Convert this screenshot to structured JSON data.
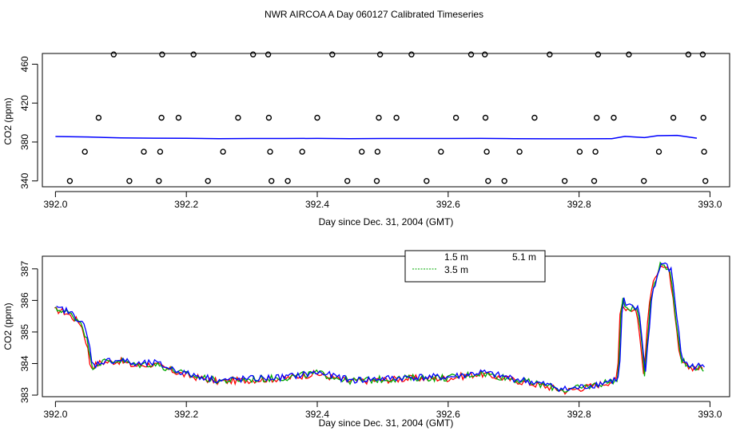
{
  "title": "NWR AIRCOA A  Day 060127  Calibrated Timeseries",
  "chart_data": [
    {
      "type": "scatter",
      "xlabel": "Day since Dec. 31, 2004 (GMT)",
      "ylabel": "CO2 (ppm)",
      "xlim": [
        391.98,
        393.03
      ],
      "ylim": [
        334,
        471
      ],
      "xticks": [
        "392.0",
        "392.2",
        "392.4",
        "392.6",
        "392.8",
        "393.0"
      ],
      "yticks": [
        "340",
        "380",
        "420",
        "460"
      ],
      "calibration_points": [
        [
          392.022,
          340
        ],
        [
          392.045,
          370
        ],
        [
          392.066,
          405
        ],
        [
          392.089,
          470
        ],
        [
          392.113,
          340
        ],
        [
          392.135,
          370
        ],
        [
          392.158,
          340
        ],
        [
          392.16,
          370
        ],
        [
          392.162,
          405
        ],
        [
          392.163,
          470
        ],
        [
          392.188,
          405
        ],
        [
          392.211,
          470
        ],
        [
          392.233,
          340
        ],
        [
          392.256,
          370
        ],
        [
          392.279,
          405
        ],
        [
          392.302,
          470
        ],
        [
          392.325,
          470
        ],
        [
          392.326,
          405
        ],
        [
          392.328,
          370
        ],
        [
          392.33,
          340
        ],
        [
          392.355,
          340
        ],
        [
          392.377,
          370
        ],
        [
          392.4,
          405
        ],
        [
          392.423,
          470
        ],
        [
          392.446,
          340
        ],
        [
          392.468,
          370
        ],
        [
          392.491,
          340
        ],
        [
          392.492,
          370
        ],
        [
          392.494,
          405
        ],
        [
          392.496,
          470
        ],
        [
          392.521,
          405
        ],
        [
          392.544,
          470
        ],
        [
          392.567,
          340
        ],
        [
          392.589,
          370
        ],
        [
          392.612,
          405
        ],
        [
          392.635,
          470
        ],
        [
          392.656,
          470
        ],
        [
          392.657,
          405
        ],
        [
          392.659,
          370
        ],
        [
          392.661,
          340
        ],
        [
          392.686,
          340
        ],
        [
          392.709,
          370
        ],
        [
          392.732,
          405
        ],
        [
          392.755,
          470
        ],
        [
          392.778,
          340
        ],
        [
          392.801,
          370
        ],
        [
          392.823,
          340
        ],
        [
          392.825,
          370
        ],
        [
          392.827,
          405
        ],
        [
          392.829,
          470
        ],
        [
          392.853,
          405
        ],
        [
          392.876,
          470
        ],
        [
          392.899,
          340
        ],
        [
          392.922,
          370
        ],
        [
          392.944,
          405
        ],
        [
          392.967,
          470
        ],
        [
          392.989,
          470
        ],
        [
          392.99,
          405
        ],
        [
          392.991,
          370
        ],
        [
          392.993,
          340
        ]
      ],
      "baseline_line": {
        "x": [
          392.0,
          392.05,
          392.1,
          392.15,
          392.2,
          392.25,
          392.3,
          392.35,
          392.4,
          392.45,
          392.5,
          392.55,
          392.6,
          392.65,
          392.7,
          392.75,
          392.8,
          392.85,
          392.87,
          392.9,
          392.92,
          392.95,
          392.98
        ],
        "y": [
          385.7,
          385.2,
          384.2,
          384.0,
          383.8,
          383.5,
          383.6,
          383.6,
          383.7,
          383.5,
          383.6,
          383.6,
          383.6,
          383.7,
          383.5,
          383.3,
          383.3,
          383.5,
          385.8,
          384.5,
          386.5,
          386.8,
          384.0
        ]
      }
    },
    {
      "type": "line",
      "xlabel": "Day since Dec. 31, 2004 (GMT)",
      "ylabel": "CO2 (ppm)",
      "xlim": [
        391.98,
        393.03
      ],
      "ylim": [
        382.95,
        387.4
      ],
      "xticks": [
        "392.0",
        "392.2",
        "392.4",
        "392.6",
        "392.8",
        "393.0"
      ],
      "yticks": [
        "383",
        "384",
        "385",
        "386",
        "387"
      ],
      "legend": {
        "position": "top-center",
        "partial_entries": [
          "1.5 m",
          "5.1 m"
        ],
        "entries": [
          {
            "label": "3.5 m",
            "color": "#00aa00",
            "dashed": true
          }
        ]
      },
      "series": [
        {
          "name": "1.5 m",
          "color": "#ff0000"
        },
        {
          "name": "3.5 m",
          "color": "#00aa00"
        },
        {
          "name": "5.1 m",
          "color": "#0000ff"
        }
      ],
      "profile": {
        "x": [
          392.0,
          392.01,
          392.02,
          392.03,
          392.04,
          392.05,
          392.055,
          392.07,
          392.1,
          392.12,
          392.15,
          392.2,
          392.25,
          392.3,
          392.35,
          392.4,
          392.45,
          392.5,
          392.55,
          392.6,
          392.65,
          392.7,
          392.75,
          392.78,
          392.82,
          392.86,
          392.865,
          392.87,
          392.89,
          392.9,
          392.91,
          392.925,
          392.94,
          392.955,
          392.965,
          392.98,
          392.99
        ],
        "y": [
          385.7,
          385.7,
          385.6,
          385.45,
          385.3,
          384.6,
          383.9,
          384.05,
          384.1,
          383.95,
          384.0,
          383.65,
          383.45,
          383.5,
          383.55,
          383.7,
          383.45,
          383.5,
          383.55,
          383.55,
          383.7,
          383.5,
          383.3,
          383.15,
          383.3,
          383.5,
          386.1,
          385.8,
          385.7,
          383.7,
          386.2,
          387.2,
          386.9,
          384.2,
          383.9,
          383.9,
          383.85
        ]
      }
    }
  ]
}
